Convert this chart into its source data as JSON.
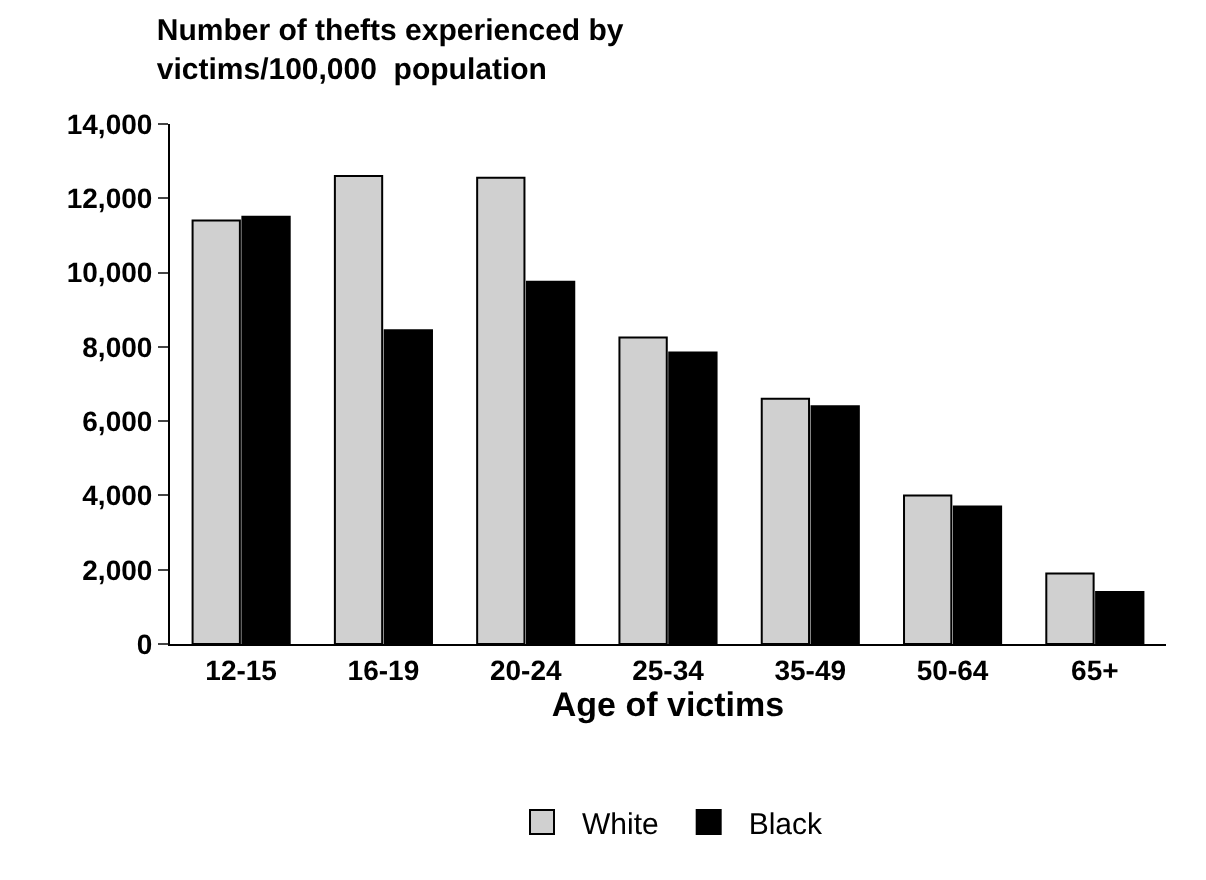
{
  "chart_data": {
    "type": "bar",
    "title": "Number of thefts experienced by victims/100,000  population",
    "xlabel": "Age of victims",
    "categories": [
      "12-15",
      "16-19",
      "20-24",
      "25-34",
      "35-49",
      "50-64",
      "65+"
    ],
    "series": [
      {
        "name": "White",
        "color": "#d0d0d0",
        "values": [
          11400,
          12600,
          12550,
          8250,
          6600,
          4000,
          1900
        ]
      },
      {
        "name": "Black",
        "color": "#000000",
        "values": [
          11500,
          8450,
          9750,
          7850,
          6400,
          3700,
          1400
        ]
      }
    ],
    "ylim": [
      0,
      14000
    ],
    "yticks": [
      {
        "value": 0,
        "label": "0"
      },
      {
        "value": 2000,
        "label": "2,000"
      },
      {
        "value": 4000,
        "label": "4,000"
      },
      {
        "value": 6000,
        "label": "6,000"
      },
      {
        "value": 8000,
        "label": "8,000"
      },
      {
        "value": 10000,
        "label": "10,000"
      },
      {
        "value": 12000,
        "label": "12,000"
      },
      {
        "value": 14000,
        "label": "14,000"
      }
    ],
    "legend": "bottom"
  }
}
